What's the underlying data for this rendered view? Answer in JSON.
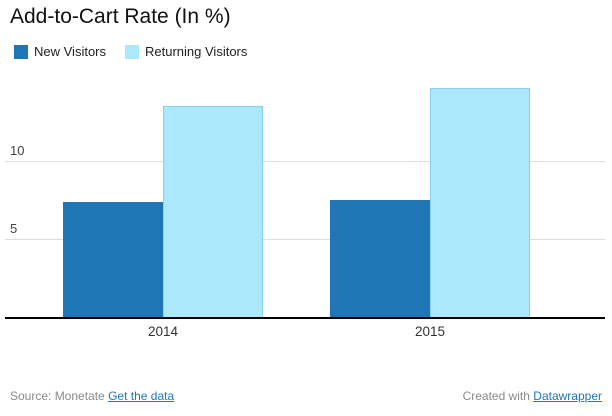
{
  "title": "Add-to-Cart Rate (In %)",
  "chart_data": {
    "type": "bar",
    "categories": [
      "2014",
      "2015"
    ],
    "series": [
      {
        "name": "New Visitors",
        "values": [
          7.4,
          7.5
        ],
        "color": "#2076b5"
      },
      {
        "name": "Returning Visitors",
        "values": [
          13.5,
          14.6
        ],
        "color": "#ace8fc",
        "border_color": "#85d2ee"
      }
    ],
    "title": "Add-to-Cart Rate (In %)",
    "xlabel": "",
    "ylabel": "",
    "ylim": [
      0,
      15
    ],
    "yticks": [
      5,
      10
    ],
    "grid": true,
    "legend_position": "top-left",
    "colors": {
      "new_visitors": "#2076b5",
      "returning_visitors": "#ace8fc"
    }
  },
  "footer": {
    "source_prefix": "Source: Monetate",
    "source_link_label": "Get the data",
    "credit_prefix": "Created with",
    "credit_link_label": "Datawrapper"
  }
}
